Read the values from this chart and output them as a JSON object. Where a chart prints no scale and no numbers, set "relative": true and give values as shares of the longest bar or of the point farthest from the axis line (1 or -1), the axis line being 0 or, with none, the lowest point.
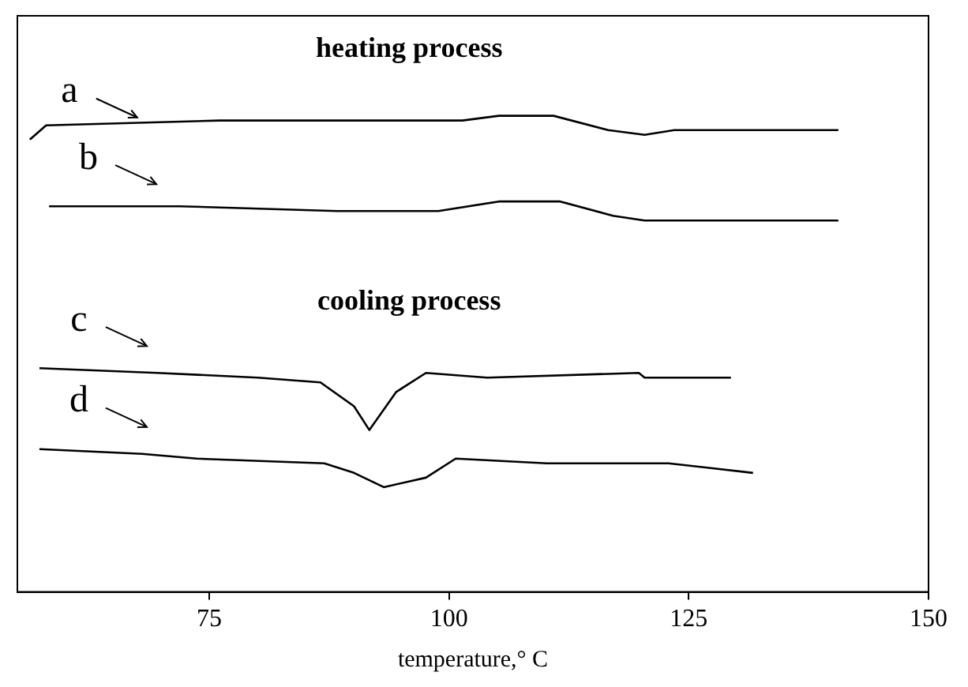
{
  "chart_data": {
    "type": "line",
    "relative": true,
    "xlabel": "temperature,° C",
    "xlim": [
      55,
      150
    ],
    "xticks": [
      75,
      100,
      125,
      150
    ],
    "grid": false,
    "legend": "top left",
    "marker": "none",
    "line_style": "solid",
    "annotations": [
      "heating process",
      "cooling process"
    ],
    "series": [
      {
        "name": "a",
        "color": "#000000",
        "x": [
          56.3,
          58.0,
          76.1,
          101.4,
          105.2,
          110.9,
          116.6,
          120.4,
          123.5,
          140.6
        ],
        "values": [
          0.95,
          0.98,
          0.99,
          0.99,
          1,
          1,
          0.97,
          0.96,
          0.97,
          0.97
        ]
      },
      {
        "name": "b",
        "color": "#000000",
        "x": [
          58.3,
          71.9,
          88.3,
          98.9,
          105.2,
          111.6,
          117.1,
          120.4,
          140.6
        ],
        "values": [
          0.81,
          0.81,
          0.8,
          0.8,
          0.82,
          0.82,
          0.79,
          0.78,
          0.78
        ]
      },
      {
        "name": "c",
        "color": "#000000",
        "x": [
          57.3,
          69.6,
          80.1,
          86.6,
          90.1,
          91.7,
          94.5,
          97.6,
          104.0,
          119.8,
          120.4,
          129.4
        ],
        "values": [
          0.47,
          0.46,
          0.45,
          0.44,
          0.39,
          0.34,
          0.42,
          0.46,
          0.45,
          0.46,
          0.45,
          0.45
        ]
      },
      {
        "name": "d",
        "color": "#000000",
        "x": [
          57.3,
          68.0,
          73.7,
          87.0,
          90.1,
          93.2,
          97.6,
          100.7,
          110.2,
          122.9,
          127.3,
          131.7
        ],
        "values": [
          0.3,
          0.29,
          0.28,
          0.27,
          0.25,
          0.22,
          0.24,
          0.28,
          0.27,
          0.27,
          0.26,
          0.25
        ]
      }
    ]
  }
}
